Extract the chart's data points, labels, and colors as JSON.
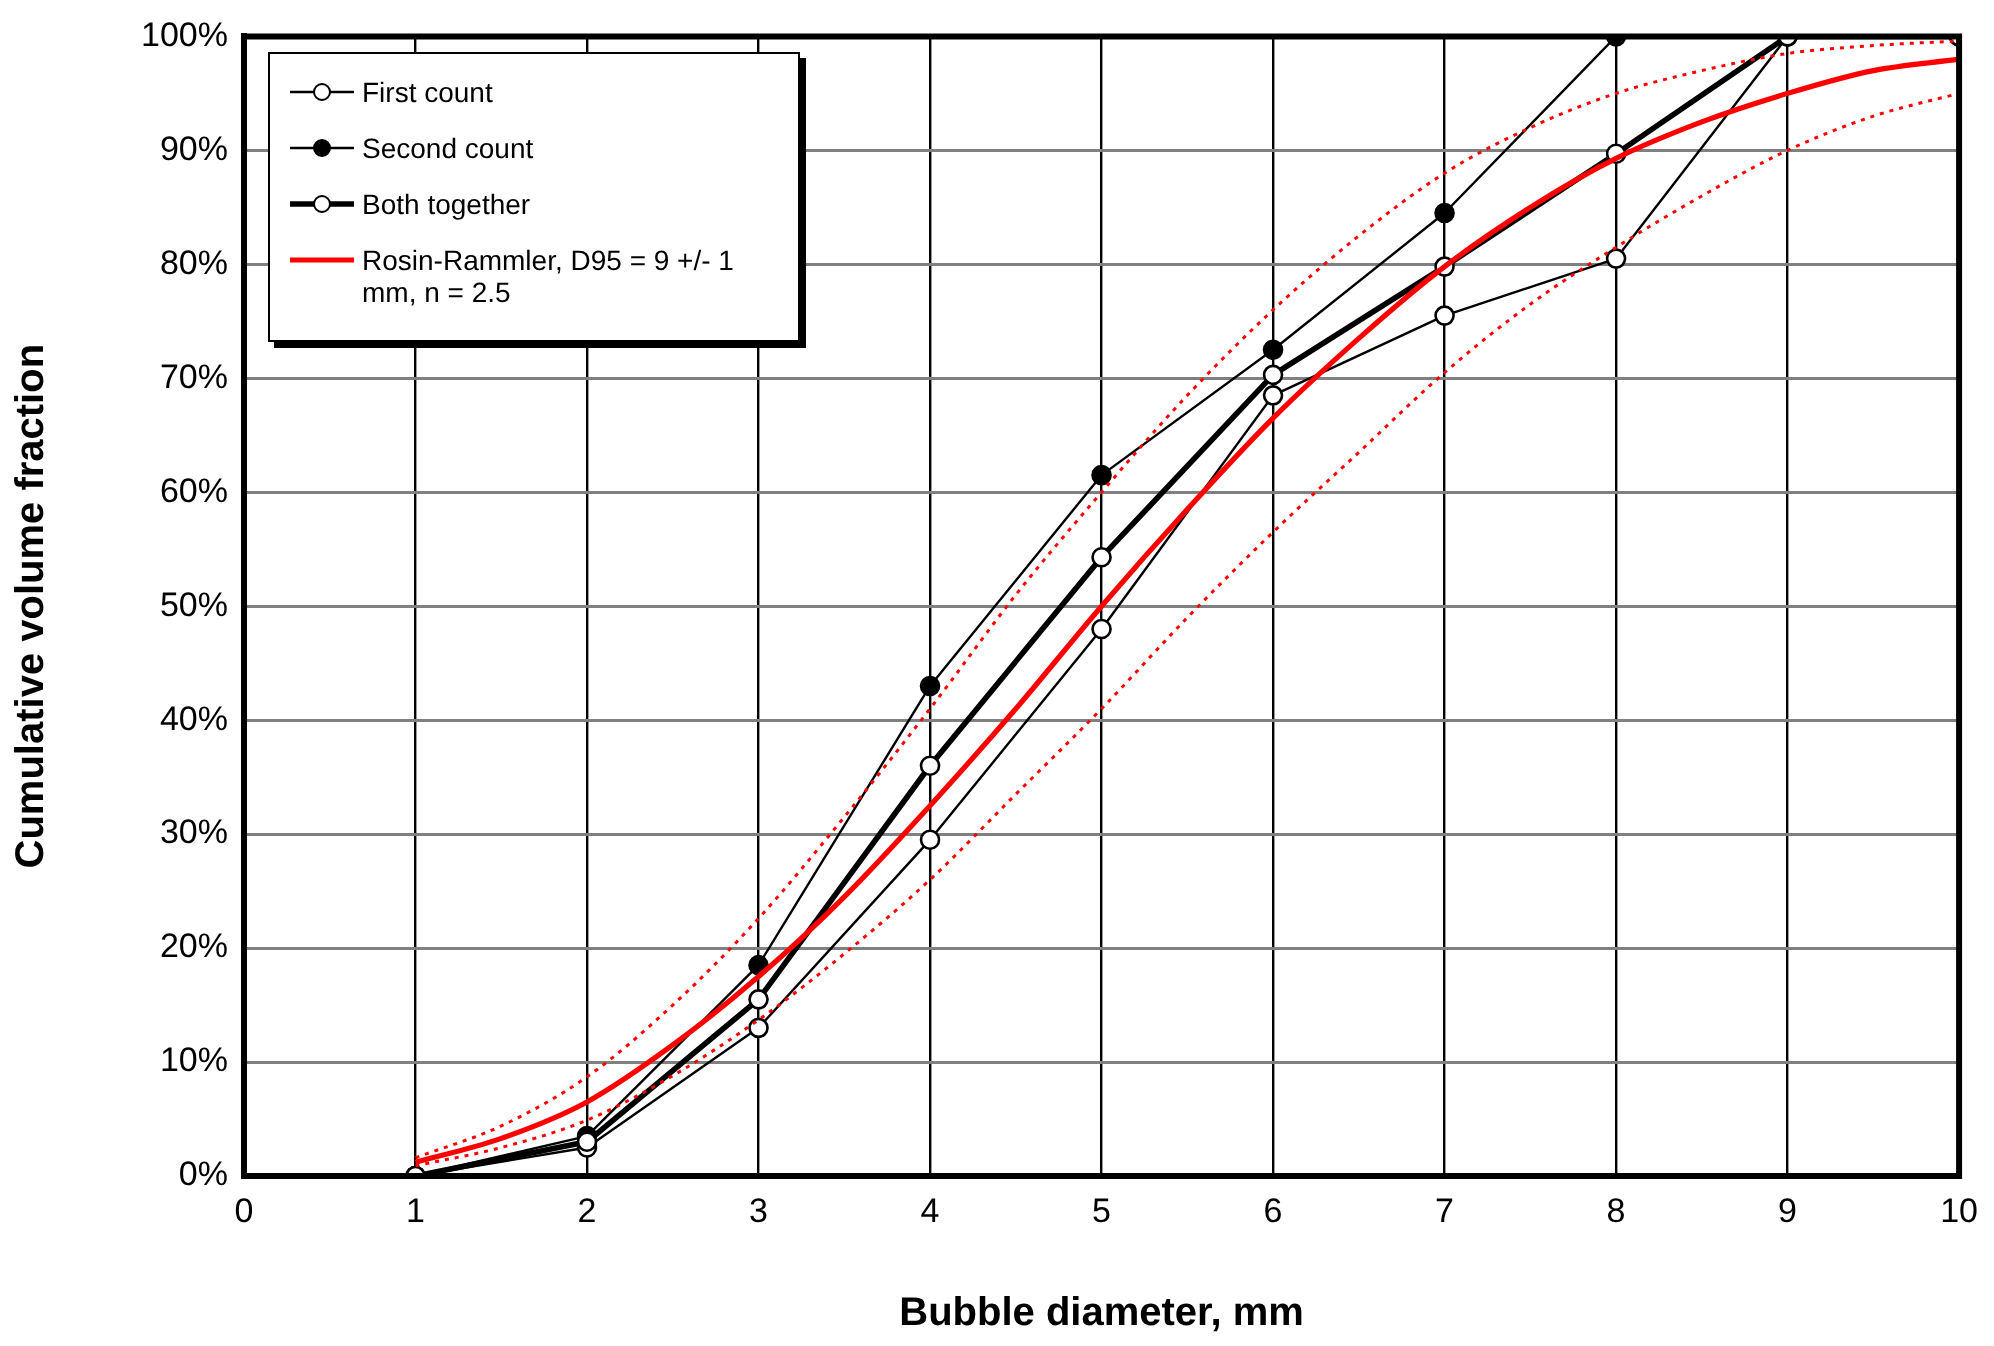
{
  "chart_data": {
    "type": "line",
    "xlabel": "Bubble diameter, mm",
    "ylabel": "Cumulative volume fraction",
    "x": [
      1,
      2,
      3,
      4,
      5,
      6,
      7,
      8,
      9,
      10
    ],
    "xlim": [
      0,
      10
    ],
    "xticks": [
      0,
      1,
      2,
      3,
      4,
      5,
      6,
      7,
      8,
      9,
      10
    ],
    "ylim": [
      0,
      100
    ],
    "yticks": [
      {
        "value": 0,
        "label": "0%"
      },
      {
        "value": 10,
        "label": "10%"
      },
      {
        "value": 20,
        "label": "20%"
      },
      {
        "value": 30,
        "label": "30%"
      },
      {
        "value": 40,
        "label": "40%"
      },
      {
        "value": 50,
        "label": "50%"
      },
      {
        "value": 60,
        "label": "60%"
      },
      {
        "value": 70,
        "label": "70%"
      },
      {
        "value": 80,
        "label": "80%"
      },
      {
        "value": 90,
        "label": "90%"
      },
      {
        "value": 100,
        "label": "100%"
      }
    ],
    "grid": true,
    "legend": "top left",
    "line_style": "solid",
    "series": [
      {
        "name": "First count",
        "color": "#000000",
        "marker": "circle",
        "values": [
          0,
          2.5,
          13,
          29.5,
          48,
          68.5,
          75.5,
          80.5,
          100,
          100
        ]
      },
      {
        "name": "Second count",
        "color": "#000000",
        "marker": "circle",
        "values": [
          0,
          3.5,
          18.5,
          43,
          61.5,
          72.5,
          84.5,
          100,
          null,
          null
        ]
      },
      {
        "name": "Both together",
        "color": "#000000",
        "marker": "circle",
        "values": [
          0,
          3,
          15.5,
          36,
          54.3,
          70.3,
          79.8,
          89.7,
          100,
          100
        ]
      },
      {
        "name": "Rosin-Rammler, D95 = 9 +/- 1 mm, n = 2.5",
        "color": "#ff0000",
        "marker": "none",
        "x": [
          1,
          1.5,
          2,
          2.5,
          3,
          3.5,
          4,
          4.5,
          5,
          5.5,
          6,
          6.5,
          7,
          7.5,
          8,
          8.5,
          9,
          9.5,
          10
        ],
        "values": [
          1.2,
          3.3,
          6.5,
          11.5,
          17.5,
          24.5,
          32.5,
          41,
          50,
          58.5,
          66.5,
          73.5,
          79.8,
          85,
          89.3,
          92.5,
          95,
          97,
          98
        ]
      },
      {
        "color": "#ff0000",
        "marker": "none",
        "line_style": "dotted",
        "x": [
          1,
          1.5,
          2,
          2.5,
          3,
          3.5,
          4,
          4.5,
          5,
          5.5,
          6,
          6.5,
          7,
          7.5,
          8,
          8.5,
          9,
          9.5,
          10
        ],
        "values": [
          1.6,
          4.4,
          8.7,
          15,
          22.6,
          31.5,
          41,
          51,
          60,
          68.5,
          76,
          82.5,
          88,
          92,
          95,
          97,
          98.5,
          99.2,
          99.6
        ]
      },
      {
        "color": "#ff0000",
        "marker": "none",
        "line_style": "dotted",
        "x": [
          1,
          1.5,
          2,
          2.5,
          3,
          3.5,
          4,
          4.5,
          5,
          5.5,
          6,
          6.5,
          7,
          7.5,
          8,
          8.5,
          9,
          9.5,
          10
        ],
        "values": [
          0.9,
          2.5,
          4.9,
          8.8,
          13.7,
          19.5,
          26,
          33.5,
          41,
          49,
          56.5,
          63.5,
          70.5,
          76.5,
          81.5,
          86,
          90,
          93,
          95
        ]
      }
    ]
  }
}
